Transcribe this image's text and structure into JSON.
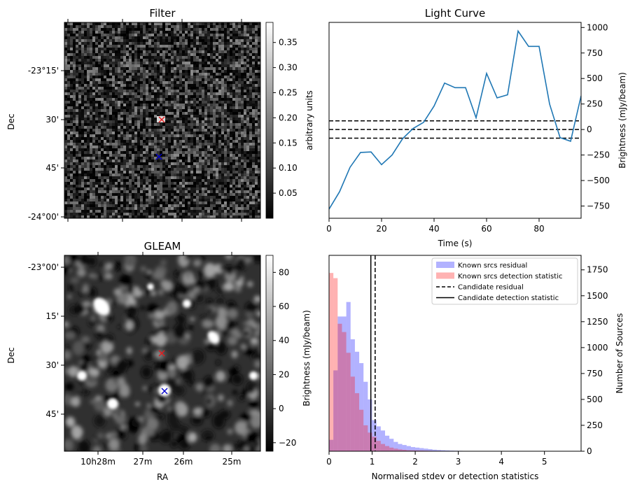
{
  "panels": {
    "filter": {
      "title": "Filter",
      "ylabel": "Dec",
      "dec_ticks": [
        "-23°15'",
        "30'",
        "45'",
        "-24°00'"
      ],
      "colorbar": {
        "label": "arbitrary units",
        "ticks": [
          "0.05",
          "0.10",
          "0.15",
          "0.20",
          "0.25",
          "0.30",
          "0.35"
        ],
        "range": [
          0.0,
          0.39
        ]
      },
      "markers": [
        {
          "name": "red-cross",
          "color": "#e41a1c"
        },
        {
          "name": "blue-cross",
          "color": "#0000cc"
        }
      ]
    },
    "gleam": {
      "title": "GLEAM",
      "ylabel": "Dec",
      "xlabel": "RA",
      "dec_ticks": [
        "-23°00'",
        "15'",
        "30'",
        "45'"
      ],
      "ra_ticks": [
        "10h28m",
        "27m",
        "26m",
        "25m"
      ],
      "colorbar": {
        "label": "Brightness (mJy/beam)",
        "ticks": [
          "−20",
          "0",
          "20",
          "40",
          "60",
          "80"
        ],
        "range": [
          -25,
          90
        ]
      },
      "markers": [
        {
          "name": "red-cross",
          "color": "#e41a1c"
        },
        {
          "name": "blue-cross",
          "color": "#0000cc"
        }
      ]
    }
  },
  "chart_data": [
    {
      "type": "line",
      "title": "Light Curve",
      "xlabel": "Time (s)",
      "ylabel": "Brightness (mJy/beam)",
      "xlim": [
        0,
        96
      ],
      "ylim": [
        -870,
        1050
      ],
      "xticks": [
        0,
        20,
        40,
        60,
        80
      ],
      "yticks": [
        -750,
        -500,
        -250,
        0,
        250,
        500,
        750,
        1000
      ],
      "color": "#1f77b4",
      "x": [
        0,
        4,
        8,
        12,
        16,
        20,
        24,
        28,
        32,
        36,
        40,
        44,
        48,
        52,
        56,
        60,
        64,
        68,
        72,
        76,
        80,
        84,
        88,
        92,
        96
      ],
      "y": [
        -780,
        -610,
        -370,
        -225,
        -220,
        -345,
        -250,
        -90,
        10,
        70,
        230,
        455,
        410,
        410,
        115,
        550,
        310,
        340,
        965,
        815,
        815,
        250,
        -80,
        -115,
        330
      ],
      "hlines": [
        {
          "y": 85,
          "style": "dashed",
          "color": "#000000"
        },
        {
          "y": 0,
          "style": "dashed",
          "color": "#000000"
        },
        {
          "y": -85,
          "style": "dashed",
          "color": "#000000"
        }
      ]
    },
    {
      "type": "bar",
      "xlabel": "Normalised stdev or detection statistics",
      "ylabel": "Number of Sources",
      "xlim": [
        0,
        5.85
      ],
      "ylim": [
        0,
        1890
      ],
      "xticks": [
        0,
        1,
        2,
        3,
        4,
        5
      ],
      "yticks": [
        0,
        250,
        500,
        750,
        1000,
        1250,
        1500,
        1750
      ],
      "bin_width": 0.1,
      "series": [
        {
          "name": "Known srcs residual",
          "color": "#0000ff",
          "opacity": 0.3,
          "bin_start": 0.0,
          "values": [
            110,
            780,
            1300,
            1300,
            1440,
            1080,
            960,
            850,
            670,
            500,
            300,
            240,
            200,
            150,
            120,
            90,
            70,
            60,
            50,
            40,
            35,
            30,
            25,
            20,
            15,
            12,
            10,
            8,
            6,
            5,
            4,
            3,
            3,
            2,
            2,
            2,
            1,
            1,
            1,
            1
          ]
        },
        {
          "name": "Known srcs detection statistic",
          "color": "#ff0000",
          "opacity": 0.3,
          "bin_start": 0.0,
          "values": [
            1720,
            1670,
            1230,
            1150,
            950,
            720,
            560,
            400,
            250,
            180,
            140,
            100,
            70,
            50,
            35,
            25,
            18,
            14,
            10,
            9,
            8,
            7,
            6,
            5,
            4,
            4,
            3,
            3,
            3,
            2,
            2,
            2,
            2,
            2,
            1,
            1,
            1,
            1,
            1,
            1,
            1,
            1,
            1,
            1,
            1,
            1,
            1,
            1,
            1,
            1,
            1,
            1,
            1,
            1,
            1,
            1
          ]
        }
      ],
      "vlines": [
        {
          "name": "Candidate residual",
          "x": 1.07,
          "style": "dashed",
          "color": "#000000"
        },
        {
          "name": "Candidate detection statistic",
          "x": 0.97,
          "style": "solid",
          "color": "#000000"
        }
      ],
      "legend": "top-right"
    }
  ]
}
